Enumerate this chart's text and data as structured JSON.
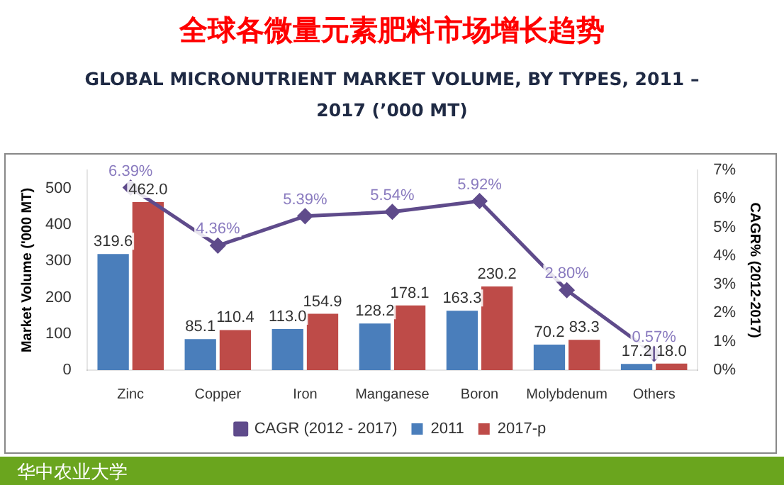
{
  "chart_data": {
    "type": "bar",
    "title": "全球各微量元素肥料市场增长趋势",
    "subtitle": "GLOBAL MICRONUTRIENT MARKET VOLUME, BY TYPES, 2011 – 2017 (’000 MT)",
    "ylabel": "Market Volume ('000 MT)",
    "y2label": "CAGR% (2012-2017)",
    "annotations": [
      "华中农业大学"
    ],
    "categories": [
      "Zinc",
      "Copper",
      "Iron",
      "Manganese",
      "Boron",
      "Molybdenum",
      "Others"
    ],
    "series": [
      {
        "name": "2011",
        "color": "#4a7ebb",
        "values": [
          319.6,
          85.1,
          113.0,
          128.2,
          163.3,
          70.2,
          17.2
        ],
        "value_labels": [
          "319.6",
          "85.1",
          "113.0",
          "128.2",
          "163.3",
          "70.2",
          "17.2"
        ]
      },
      {
        "name": "2017-p",
        "color": "#be4b48",
        "values": [
          462.0,
          110.4,
          154.9,
          178.1,
          230.2,
          83.3,
          18.0
        ],
        "value_labels": [
          "462.0",
          "110.4",
          "154.9",
          "178.1",
          "230.2",
          "83.3",
          "18.0"
        ]
      },
      {
        "name": "CAGR (2012 - 2017)",
        "type": "line",
        "axis": "y2",
        "color": "#5f4b8b",
        "marker": "diamond",
        "values": [
          6.39,
          4.36,
          5.39,
          5.54,
          5.92,
          2.8,
          0.57
        ],
        "value_labels": [
          "6.39%",
          "4.36%",
          "5.39%",
          "5.54%",
          "5.92%",
          "2.80%",
          "0.57%"
        ]
      }
    ],
    "ylim": [
      0,
      550
    ],
    "yticks": [
      0,
      100,
      200,
      300,
      400,
      500
    ],
    "y2lim": [
      0,
      7
    ],
    "y2ticks": [
      {
        "value": 0,
        "label": "0%"
      },
      {
        "value": 1,
        "label": "1%"
      },
      {
        "value": 2,
        "label": "2%"
      },
      {
        "value": 3,
        "label": "3%"
      },
      {
        "value": 4,
        "label": "4%"
      },
      {
        "value": 5,
        "label": "5%"
      },
      {
        "value": 6,
        "label": "6%"
      },
      {
        "value": 7,
        "label": "7%"
      }
    ],
    "grid": false,
    "legend": "bottom"
  }
}
